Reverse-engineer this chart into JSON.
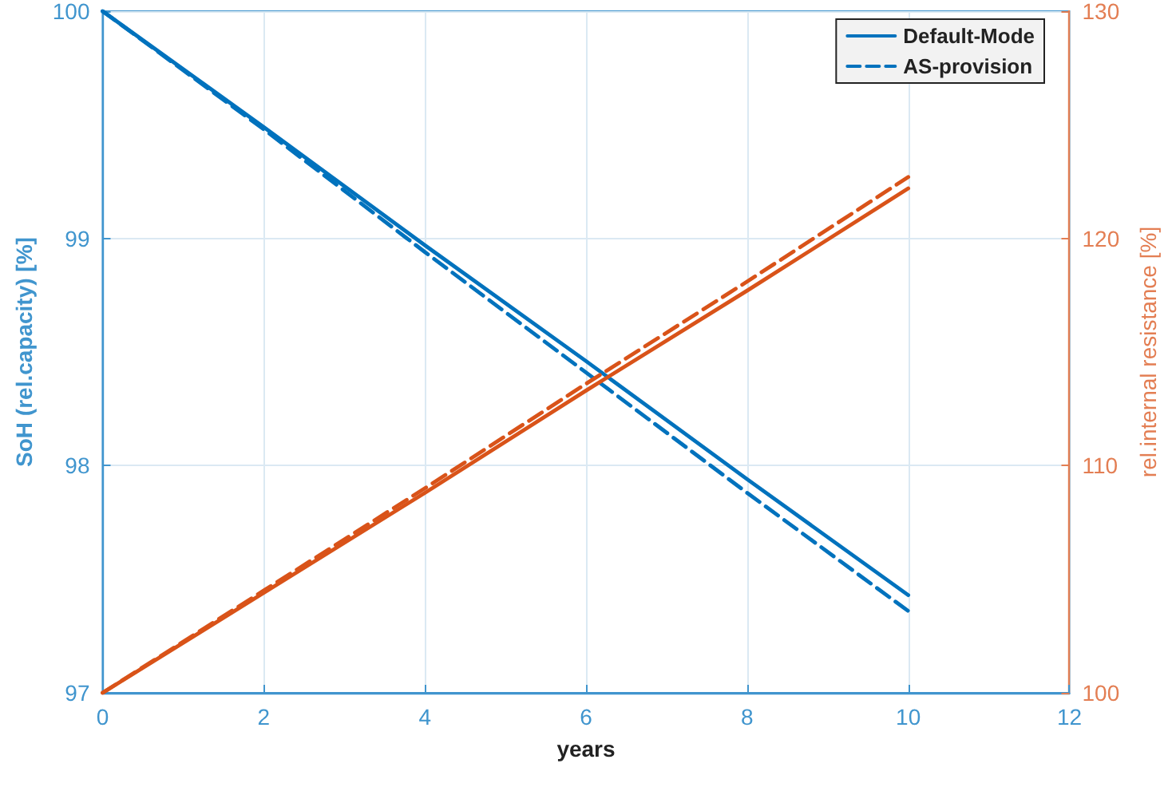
{
  "chart_data": {
    "type": "line",
    "xlabel": "years",
    "ylabel": "SoH (rel.capacity) [%]",
    "y2label": "rel.internal resistance [%]",
    "x": [
      0,
      2,
      4,
      6,
      8,
      10
    ],
    "series": [
      {
        "name": "Default-Mode",
        "color": "#0072bd",
        "line_style": "solid",
        "values": [
          100,
          99.49,
          98.97,
          98.46,
          97.94,
          97.43
        ]
      },
      {
        "name": "AS-provision",
        "color": "#0072bd",
        "line_style": "dashed",
        "values": [
          100,
          99.48,
          98.94,
          98.41,
          97.88,
          97.36
        ]
      },
      {
        "color": "#d95319",
        "line_style": "solid",
        "axis": "y2",
        "values": [
          100,
          104.4,
          108.8,
          113.3,
          117.7,
          122.2
        ]
      },
      {
        "color": "#d95319",
        "line_style": "dashed",
        "axis": "y2",
        "values": [
          100,
          104.5,
          109.0,
          113.6,
          118.1,
          122.7
        ]
      }
    ],
    "xlim": [
      0,
      12
    ],
    "xticks": [
      0,
      2,
      4,
      6,
      8,
      10,
      12
    ],
    "ylim": [
      97,
      100
    ],
    "yticks": [
      97,
      98,
      99,
      100
    ],
    "y2lim": [
      100,
      130
    ],
    "y2ticks": [
      100,
      110,
      120,
      130
    ],
    "grid": true,
    "legend": "top right",
    "marker": "none"
  }
}
